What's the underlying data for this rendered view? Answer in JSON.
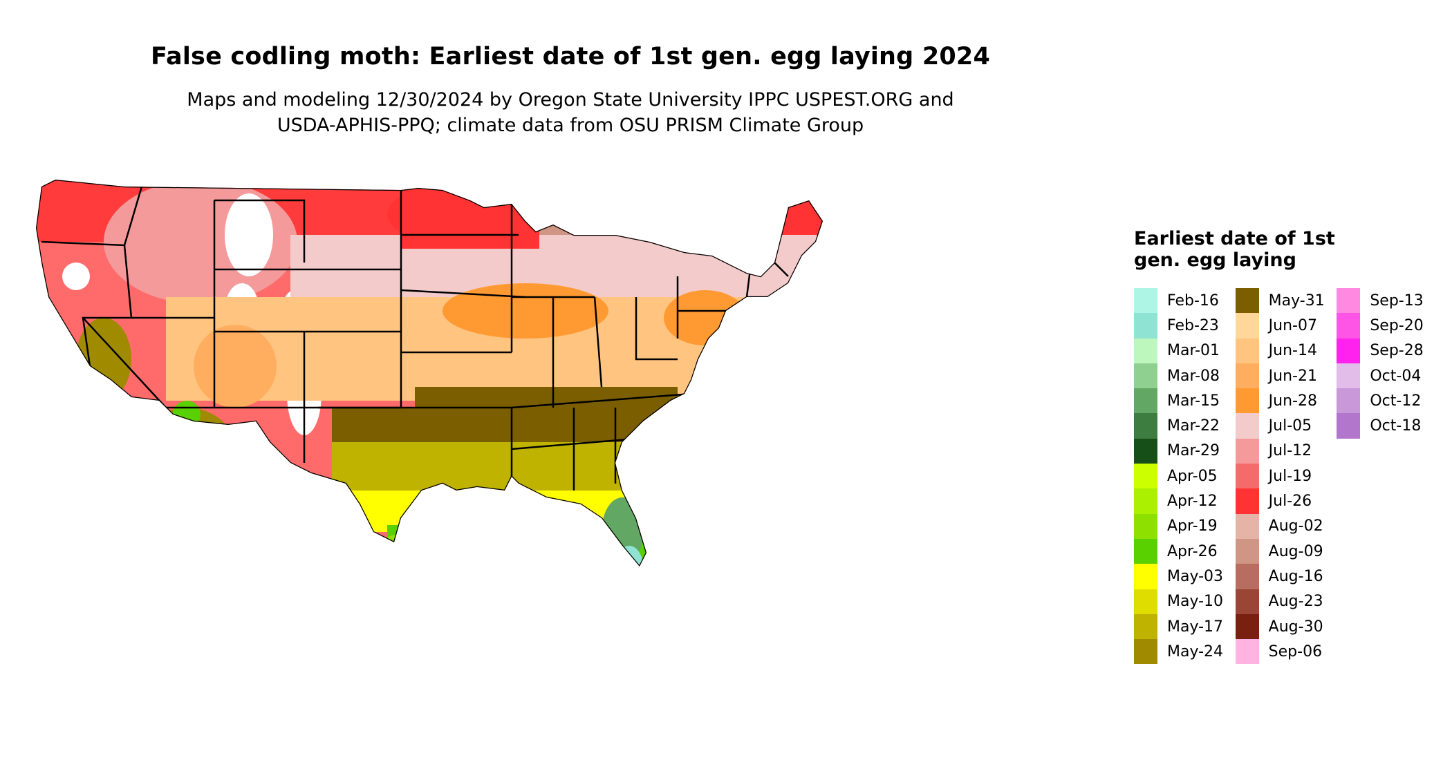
{
  "title": "False codling moth: Earliest date of 1st gen. egg laying 2024",
  "subtitle_lines": [
    "Maps and modeling 12/30/2024 by Oregon State University IPPC USPEST.ORG and",
    "USDA-APHIS-PPQ; climate data from OSU PRISM Climate Group"
  ],
  "legend": {
    "title": "Earliest date of 1st gen. egg laying",
    "columns": [
      [
        {
          "label": "Feb-16",
          "color": "#aef5e6"
        },
        {
          "label": "Feb-23",
          "color": "#8ee3d2"
        },
        {
          "label": "Mar-01",
          "color": "#bdf7bd"
        },
        {
          "label": "Mar-08",
          "color": "#8fcf8f"
        },
        {
          "label": "Mar-15",
          "color": "#62a764"
        },
        {
          "label": "Mar-22",
          "color": "#3d7d3f"
        },
        {
          "label": "Mar-29",
          "color": "#164f18"
        },
        {
          "label": "Apr-05",
          "color": "#ccff00"
        },
        {
          "label": "Apr-12",
          "color": "#aaf000"
        },
        {
          "label": "Apr-19",
          "color": "#8de000"
        },
        {
          "label": "Apr-26",
          "color": "#59d000"
        },
        {
          "label": "May-03",
          "color": "#ffff00"
        },
        {
          "label": "May-10",
          "color": "#dfdc00"
        },
        {
          "label": "May-17",
          "color": "#bfb300"
        },
        {
          "label": "May-24",
          "color": "#a08a00"
        }
      ],
      [
        {
          "label": "May-31",
          "color": "#7a5e00"
        },
        {
          "label": "Jun-07",
          "color": "#ffd79a"
        },
        {
          "label": "Jun-14",
          "color": "#ffc480"
        },
        {
          "label": "Jun-21",
          "color": "#ffae60"
        },
        {
          "label": "Jun-28",
          "color": "#ff9a33"
        },
        {
          "label": "Jul-05",
          "color": "#f4cbcb"
        },
        {
          "label": "Jul-12",
          "color": "#f59a9a"
        },
        {
          "label": "Jul-19",
          "color": "#f56a6a"
        },
        {
          "label": "Jul-26",
          "color": "#ff3333"
        },
        {
          "label": "Aug-02",
          "color": "#e6b4a6"
        },
        {
          "label": "Aug-09",
          "color": "#cf9585"
        },
        {
          "label": "Aug-16",
          "color": "#b76e60"
        },
        {
          "label": "Aug-23",
          "color": "#9a4535"
        },
        {
          "label": "Aug-30",
          "color": "#7a2010"
        },
        {
          "label": "Sep-06",
          "color": "#ffb3e0"
        }
      ],
      [
        {
          "label": "Sep-13",
          "color": "#ff88e0"
        },
        {
          "label": "Sep-20",
          "color": "#ff55e6"
        },
        {
          "label": "Sep-28",
          "color": "#ff22ee"
        },
        {
          "label": "Oct-04",
          "color": "#e3bdea"
        },
        {
          "label": "Oct-12",
          "color": "#c998d9"
        },
        {
          "label": "Oct-18",
          "color": "#b276cc"
        }
      ]
    ]
  },
  "map": {
    "region": "contiguous-us",
    "background_no_data": "#ffffff",
    "border_color": "#000000"
  }
}
